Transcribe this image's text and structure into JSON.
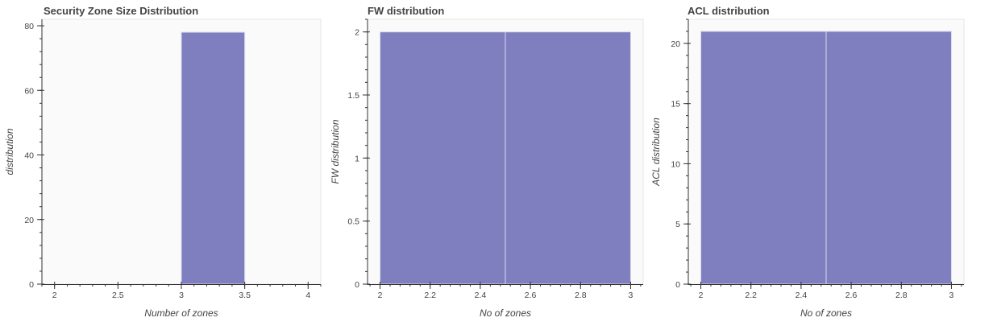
{
  "chart_data": [
    {
      "type": "bar",
      "title": "Security Zone Size Distribution",
      "xlabel": "Number of zones",
      "ylabel": "distribution",
      "xlim": [
        1.9,
        4.1
      ],
      "ylim": [
        0,
        82
      ],
      "xticks": [
        2,
        2.5,
        3,
        3.5,
        4
      ],
      "xtick_labels": [
        "2",
        "2.5",
        "3",
        "3.5",
        "4"
      ],
      "yticks": [
        0,
        20,
        40,
        60,
        80
      ],
      "ytick_labels": [
        "0",
        "20",
        "40",
        "60",
        "80"
      ],
      "bins": [
        {
          "x0": 3.0,
          "x1": 3.5,
          "value": 78
        }
      ],
      "bar_color": "#7f7fbf",
      "background_color": "#fafafa",
      "grid": false
    },
    {
      "type": "bar",
      "title": "FW distribution",
      "xlabel": "No of zones",
      "ylabel": "FW distribution",
      "xlim": [
        1.95,
        3.05
      ],
      "ylim": [
        0,
        2.1
      ],
      "xticks": [
        2,
        2.2,
        2.4,
        2.6,
        2.8,
        3
      ],
      "xtick_labels": [
        "2",
        "2.2",
        "2.4",
        "2.6",
        "2.8",
        "3"
      ],
      "yticks": [
        0,
        0.5,
        1,
        1.5,
        2
      ],
      "ytick_labels": [
        "0",
        "0.5",
        "1",
        "1.5",
        "2"
      ],
      "bins": [
        {
          "x0": 2.0,
          "x1": 2.5,
          "value": 2
        },
        {
          "x0": 2.5,
          "x1": 3.0,
          "value": 2
        }
      ],
      "bar_color": "#7f7fbf",
      "background_color": "#fafafa",
      "grid": false
    },
    {
      "type": "bar",
      "title": "ACL distribution",
      "xlabel": "No of zones",
      "ylabel": "ACL distribution",
      "xlim": [
        1.95,
        3.05
      ],
      "ylim": [
        0,
        22
      ],
      "xticks": [
        2,
        2.2,
        2.4,
        2.6,
        2.8,
        3
      ],
      "xtick_labels": [
        "2",
        "2.2",
        "2.4",
        "2.6",
        "2.8",
        "3"
      ],
      "yticks": [
        0,
        5,
        10,
        15,
        20
      ],
      "ytick_labels": [
        "0",
        "5",
        "10",
        "15",
        "20"
      ],
      "bins": [
        {
          "x0": 2.0,
          "x1": 2.5,
          "value": 21
        },
        {
          "x0": 2.5,
          "x1": 3.0,
          "value": 21
        }
      ],
      "bar_color": "#7f7fbf",
      "background_color": "#fafafa",
      "grid": false
    }
  ]
}
